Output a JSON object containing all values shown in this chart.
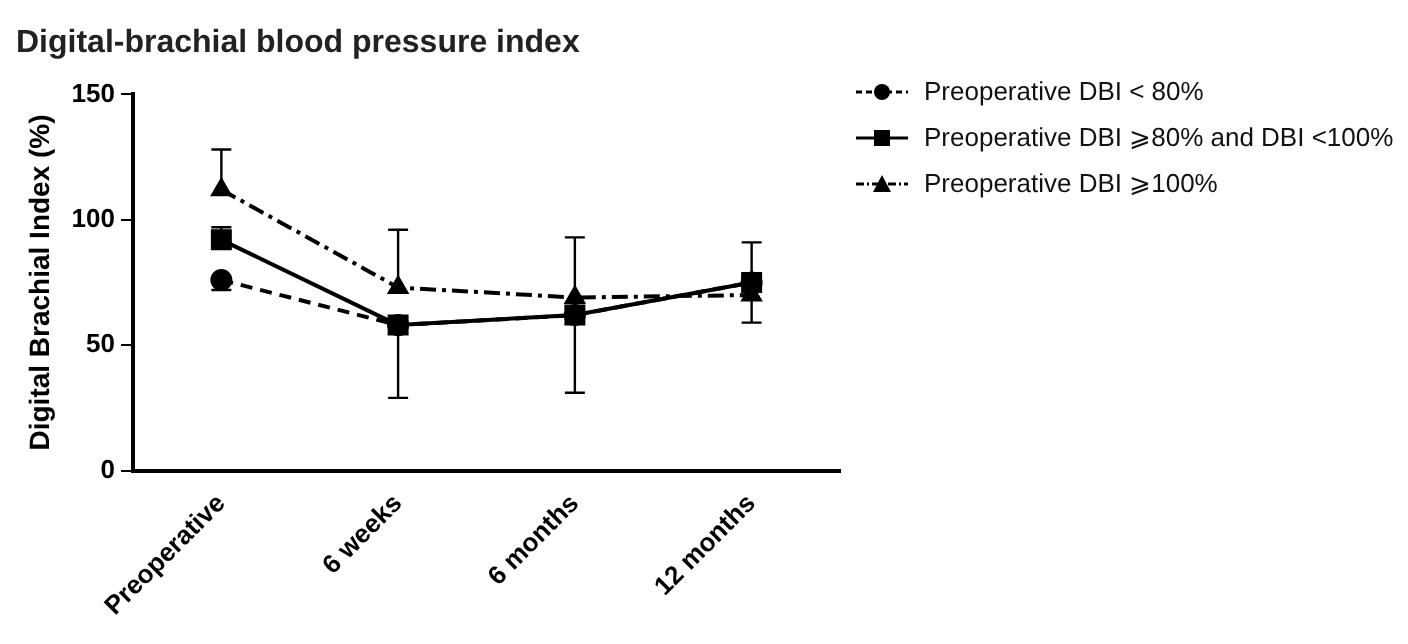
{
  "chart_data": {
    "type": "line",
    "title": "Digital-brachial blood pressure index",
    "ylabel": "Digital Brachial Index (%)",
    "categories": [
      "Preoperative",
      "6 weeks",
      "6 months",
      "12 months"
    ],
    "ylim": [
      0,
      150
    ],
    "yticks": [
      0,
      50,
      100,
      150
    ],
    "grid": false,
    "legend": "right",
    "series": [
      {
        "name": "Preoperative DBI < 80%",
        "color": "#000000",
        "marker": "circle",
        "line_style": "dashed",
        "values": [
          76,
          58,
          62,
          75
        ],
        "errors": [
          [
            72,
            76
          ],
          null,
          null,
          null
        ]
      },
      {
        "name": "Preoperative DBI ⩾80% and DBI <100%",
        "color": "#000000",
        "marker": "square",
        "line_style": "solid",
        "values": [
          92,
          58,
          62,
          75
        ],
        "errors": [
          [
            92,
            97
          ],
          [
            29,
            58
          ],
          [
            31,
            62
          ],
          [
            75,
            91
          ]
        ]
      },
      {
        "name": "Preoperative DBI ⩾100%",
        "color": "#000000",
        "marker": "triangle",
        "line_style": "dotted",
        "values": [
          112,
          73,
          69,
          70
        ],
        "errors": [
          [
            112,
            128
          ],
          [
            73,
            96
          ],
          [
            69,
            93
          ],
          [
            59,
            70
          ]
        ]
      }
    ]
  }
}
